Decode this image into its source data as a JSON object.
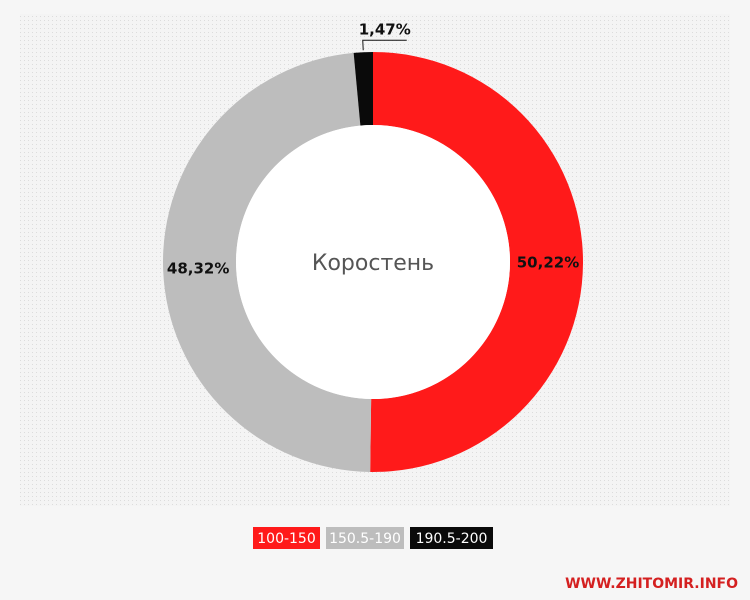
{
  "chart_data": {
    "type": "donut",
    "center_label": "Коростень",
    "categories": [
      "100-150",
      "150.5-190",
      "190.5-200"
    ],
    "values": [
      50.22,
      48.32,
      1.47
    ],
    "value_labels": [
      "50,22%",
      "48,32%",
      "1,47%"
    ],
    "colors": [
      "#ff1a1a",
      "#bdbdbd",
      "#0a0a0a"
    ]
  },
  "watermark": "WWW.ZHITOMIR.INFO"
}
